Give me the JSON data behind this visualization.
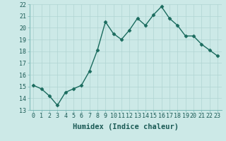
{
  "x": [
    0,
    1,
    2,
    3,
    4,
    5,
    6,
    7,
    8,
    9,
    10,
    11,
    12,
    13,
    14,
    15,
    16,
    17,
    18,
    19,
    20,
    21,
    22,
    23
  ],
  "y": [
    15.1,
    14.8,
    14.2,
    13.4,
    14.5,
    14.8,
    15.1,
    16.3,
    18.1,
    20.5,
    19.5,
    19.0,
    19.8,
    20.8,
    20.2,
    21.1,
    21.8,
    20.8,
    20.2,
    19.3,
    19.3,
    18.6,
    18.1,
    17.6
  ],
  "line_color": "#1a6b5e",
  "marker": "D",
  "markersize": 2.5,
  "linewidth": 1.0,
  "bg_color": "#cce9e7",
  "grid_color": "#b0d4d2",
  "xlabel": "Humidex (Indice chaleur)",
  "xlim": [
    -0.5,
    23.5
  ],
  "ylim": [
    13,
    22
  ],
  "yticks": [
    13,
    14,
    15,
    16,
    17,
    18,
    19,
    20,
    21,
    22
  ],
  "xticks": [
    0,
    1,
    2,
    3,
    4,
    5,
    6,
    7,
    8,
    9,
    10,
    11,
    12,
    13,
    14,
    15,
    16,
    17,
    18,
    19,
    20,
    21,
    22,
    23
  ],
  "tick_fontsize": 6,
  "xlabel_fontsize": 7.5
}
